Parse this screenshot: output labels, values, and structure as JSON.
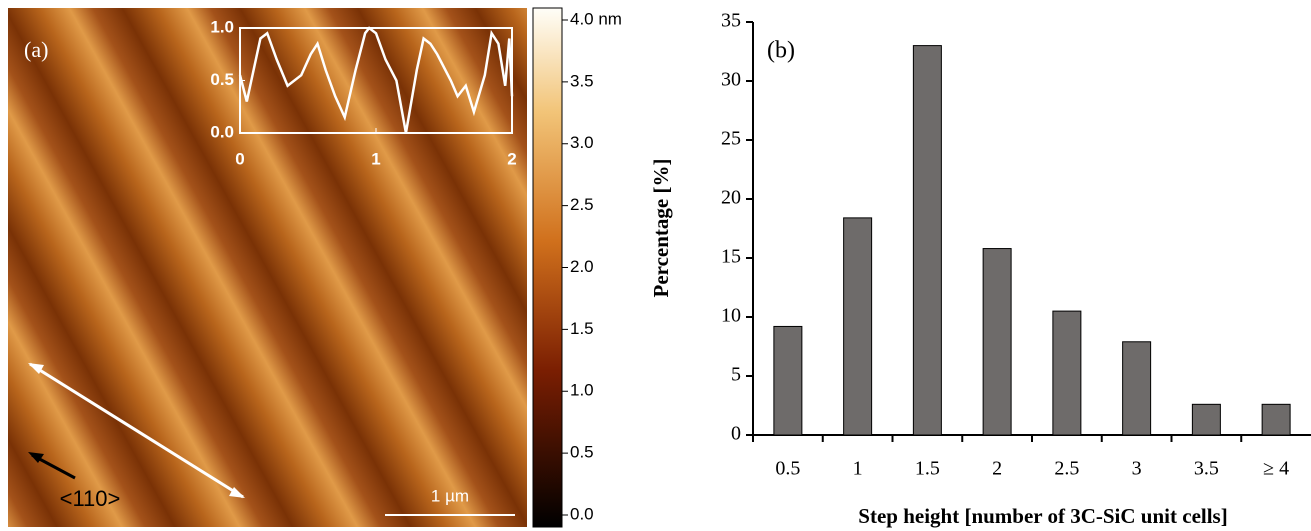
{
  "chart_data": [
    {
      "type": "line",
      "label": "(a)",
      "color": "#ffffff",
      "x": [
        0,
        0.05,
        0.1,
        0.15,
        0.2,
        0.27,
        0.35,
        0.45,
        0.52,
        0.57,
        0.63,
        0.7,
        0.77,
        0.85,
        0.92,
        0.95,
        1.0,
        1.07,
        1.15,
        1.22,
        1.3,
        1.35,
        1.4,
        1.45,
        1.55,
        1.6,
        1.66,
        1.72,
        1.8,
        1.85,
        1.9,
        1.95,
        1.98,
        2.0
      ],
      "values": [
        0.55,
        0.3,
        0.6,
        0.9,
        0.95,
        0.7,
        0.45,
        0.55,
        0.75,
        0.85,
        0.6,
        0.35,
        0.15,
        0.6,
        0.95,
        1.0,
        0.95,
        0.7,
        0.5,
        0.0,
        0.6,
        0.9,
        0.85,
        0.75,
        0.5,
        0.35,
        0.45,
        0.2,
        0.55,
        0.95,
        0.85,
        0.45,
        0.9,
        0.35
      ],
      "xlim": [
        0,
        2
      ],
      "xticks": [
        0,
        1,
        2
      ],
      "ylim": [
        0,
        1
      ],
      "yticks": [
        {
          "value": 0,
          "label": "0.0"
        },
        {
          "value": 0.5,
          "label": "0.5"
        },
        {
          "value": 1,
          "label": "1.0"
        }
      ],
      "annotations": [
        "<110>",
        "1 µm"
      ],
      "colorbar": {
        "lim": [
          0,
          4
        ],
        "ticks": [
          {
            "value": 0,
            "label": "0.0"
          },
          {
            "value": 0.5,
            "label": "0.5"
          },
          {
            "value": 1,
            "label": "1.0"
          },
          {
            "value": 1.5,
            "label": "1.5"
          },
          {
            "value": 2,
            "label": "2.0"
          },
          {
            "value": 2.5,
            "label": "2.5"
          },
          {
            "value": 3,
            "label": "3.0"
          },
          {
            "value": 3.5,
            "label": "3.5"
          },
          {
            "value": 4,
            "label": "4.0 nm"
          }
        ]
      }
    },
    {
      "type": "bar",
      "label": "(b)",
      "color": "#6e6b6a",
      "categories": [
        "0.5",
        "1",
        "1.5",
        "2",
        "2.5",
        "3",
        "3.5",
        "≥ 4"
      ],
      "values": [
        9.2,
        18.4,
        33,
        15.8,
        10.5,
        7.9,
        2.6,
        2.6
      ],
      "ylim": [
        0,
        35
      ],
      "yticks": [
        0,
        5,
        10,
        15,
        20,
        25,
        30,
        35
      ],
      "ylabel": "Percentage [%]",
      "xlabel": "Step height [number of 3C-SiC unit cells]"
    }
  ]
}
